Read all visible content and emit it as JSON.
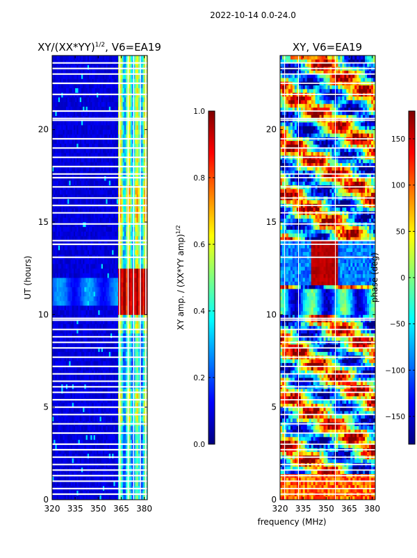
{
  "figure": {
    "suptitle": "2022-10-14 0.0-24.0",
    "xlabel_shared": "frequency (MHz)"
  },
  "colors": {
    "cmap": [
      "#00007f",
      "#0000ff",
      "#007fff",
      "#00ffff",
      "#7fff7f",
      "#ffff00",
      "#ff7f00",
      "#ff0000",
      "#7f0000"
    ],
    "gap": "#ffffff",
    "frame": "#000000"
  },
  "chart_data": [
    {
      "type": "heatmap",
      "title_main": "XY/(XX*YY)",
      "title_sup": "1/2",
      "title_tail": ", V6=EA19",
      "xlabel": "",
      "ylabel": "UT (hours)",
      "xlim": [
        320,
        382
      ],
      "ylim": [
        0,
        24
      ],
      "xticks": [
        320,
        335,
        350,
        365,
        380
      ],
      "yticks": [
        0,
        5,
        10,
        15,
        20
      ],
      "colorbar": {
        "label_main": "XY amp. / (XX*YY amp)",
        "label_sup": "1/2",
        "range": [
          0.0,
          1.0
        ],
        "ticks": [
          "0.0",
          "0.2",
          "0.4",
          "0.6",
          "0.8",
          "1.0"
        ],
        "tick_values": [
          0.0,
          0.2,
          0.4,
          0.6,
          0.8,
          1.0
        ]
      },
      "description": "Low normalized amplitude (~0.05) below 363 MHz; bright striped band 363-382 MHz (~0.4-0.6); peaks ~0.85-1.0 between 10-12.5 h; white gaps are flagged data"
    },
    {
      "type": "heatmap",
      "title_main": "XY, V6=EA19",
      "xlabel": "frequency (MHz)",
      "ylabel": "",
      "xlim": [
        320,
        382
      ],
      "ylim": [
        0,
        24
      ],
      "xticks": [
        320,
        335,
        350,
        365,
        380
      ],
      "yticks": [
        0,
        5,
        10,
        15,
        20
      ],
      "colorbar": {
        "label": "phase (deg)",
        "range": [
          -180,
          180
        ],
        "ticks": [
          "−150",
          "−100",
          "−50",
          "0",
          "50",
          "100",
          "150"
        ],
        "tick_values": [
          -150,
          -100,
          -50,
          0,
          50,
          100,
          150
        ]
      },
      "description": "XY phase spanning -180 to 180 deg with banded structure in time; white gaps are flagged data"
    }
  ],
  "gaps_hours": [
    0.3,
    0.6,
    1.0,
    1.3,
    1.6,
    1.9,
    2.3,
    2.7,
    3.0,
    3.6,
    4.1,
    4.6,
    5.0,
    5.4,
    5.8,
    6.1,
    6.4,
    6.8,
    7.2,
    7.7,
    8.2,
    8.5,
    8.8,
    9.2,
    9.7,
    9.8,
    13.1,
    13.8,
    14.0,
    14.9,
    15.5,
    15.9,
    16.3,
    16.9,
    17.4,
    17.6,
    18.0,
    18.5,
    19.0,
    19.5,
    20.5,
    20.6,
    21.0,
    21.9,
    22.5,
    23.0,
    23.3,
    23.6
  ]
}
